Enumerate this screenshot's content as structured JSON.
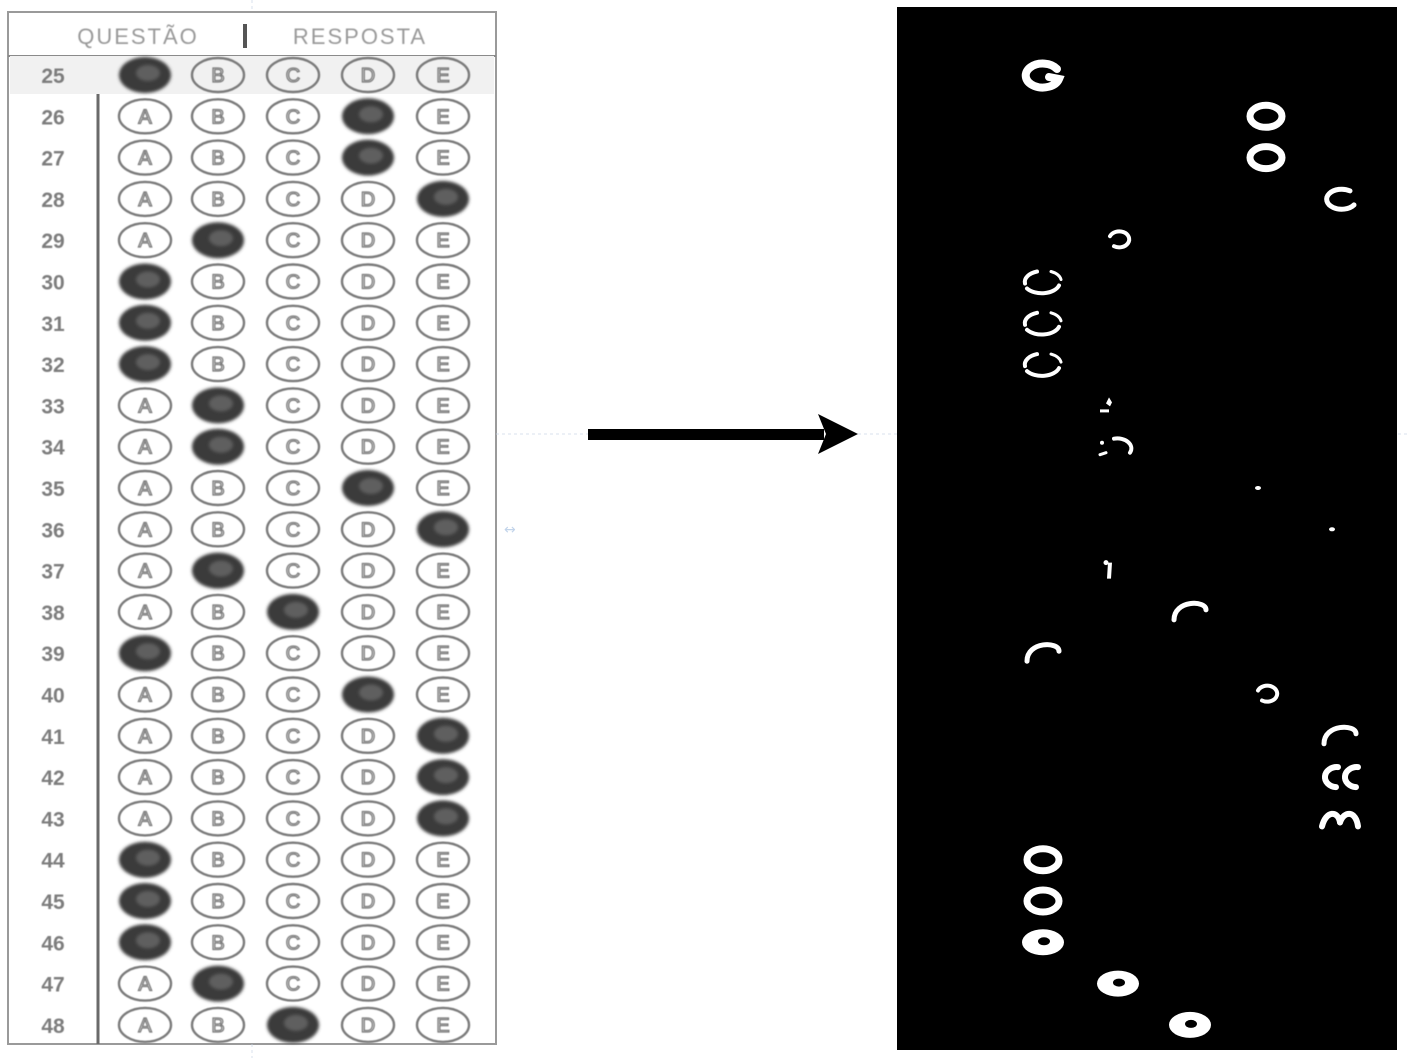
{
  "sheet": {
    "header_left": "QUESTÃO",
    "header_right": "RESPOSTA",
    "options": [
      "A",
      "B",
      "C",
      "D",
      "E"
    ],
    "rows": [
      {
        "q": "25",
        "filled": "A"
      },
      {
        "q": "26",
        "filled": "D"
      },
      {
        "q": "27",
        "filled": "D"
      },
      {
        "q": "28",
        "filled": "E"
      },
      {
        "q": "29",
        "filled": "B"
      },
      {
        "q": "30",
        "filled": "A"
      },
      {
        "q": "31",
        "filled": "A"
      },
      {
        "q": "32",
        "filled": "A"
      },
      {
        "q": "33",
        "filled": "B"
      },
      {
        "q": "34",
        "filled": "B"
      },
      {
        "q": "35",
        "filled": "D"
      },
      {
        "q": "36",
        "filled": "E"
      },
      {
        "q": "37",
        "filled": "B"
      },
      {
        "q": "38",
        "filled": "C"
      },
      {
        "q": "39",
        "filled": "A"
      },
      {
        "q": "40",
        "filled": "D"
      },
      {
        "q": "41",
        "filled": "E"
      },
      {
        "q": "42",
        "filled": "E"
      },
      {
        "q": "43",
        "filled": "E"
      },
      {
        "q": "44",
        "filled": "A"
      },
      {
        "q": "45",
        "filled": "A"
      },
      {
        "q": "46",
        "filled": "A"
      },
      {
        "q": "47",
        "filled": "B"
      },
      {
        "q": "48",
        "filled": "C"
      }
    ]
  },
  "binary": {
    "marks": [
      {
        "q": "25",
        "option": "A",
        "shape": "ring-open"
      },
      {
        "q": "26",
        "option": "D",
        "shape": "ring-hole"
      },
      {
        "q": "27",
        "option": "D",
        "shape": "ring-hole"
      },
      {
        "q": "28",
        "option": "E",
        "shape": "arc"
      },
      {
        "q": "29",
        "option": "B",
        "shape": "small-arc"
      },
      {
        "q": "30",
        "option": "A",
        "shape": "broken-ring"
      },
      {
        "q": "31",
        "option": "A",
        "shape": "broken-ring"
      },
      {
        "q": "32",
        "option": "A",
        "shape": "broken-ring"
      },
      {
        "q": "33",
        "option": "B",
        "shape": "speck"
      },
      {
        "q": "34",
        "option": "B",
        "shape": "broken-arc"
      },
      {
        "q": "35",
        "option": "D",
        "shape": "dot"
      },
      {
        "q": "36",
        "option": "E",
        "shape": "dot"
      },
      {
        "q": "37",
        "option": "B",
        "shape": "tick"
      },
      {
        "q": "38",
        "option": "C",
        "shape": "cap"
      },
      {
        "q": "39",
        "option": "A",
        "shape": "cap"
      },
      {
        "q": "40",
        "option": "D",
        "shape": "small-arc"
      },
      {
        "q": "41",
        "option": "E",
        "shape": "cap"
      },
      {
        "q": "42",
        "option": "E",
        "shape": "c-shape"
      },
      {
        "q": "43",
        "option": "E",
        "shape": "cap-low"
      },
      {
        "q": "44",
        "option": "A",
        "shape": "ring-hole"
      },
      {
        "q": "45",
        "option": "A",
        "shape": "ring-hole"
      },
      {
        "q": "46",
        "option": "A",
        "shape": "blob"
      },
      {
        "q": "47",
        "option": "B",
        "shape": "blob"
      },
      {
        "q": "48",
        "option": "C",
        "shape": "blob"
      }
    ]
  },
  "colors": {
    "sheet_bg": "#ffffff",
    "sheet_border": "#8a8a8a",
    "bubble_stroke": "#7a7a7a",
    "bubble_fill": "#3b3b3b",
    "binary_bg": "#000000",
    "binary_mark": "#ffffff",
    "arrow": "#000000"
  }
}
